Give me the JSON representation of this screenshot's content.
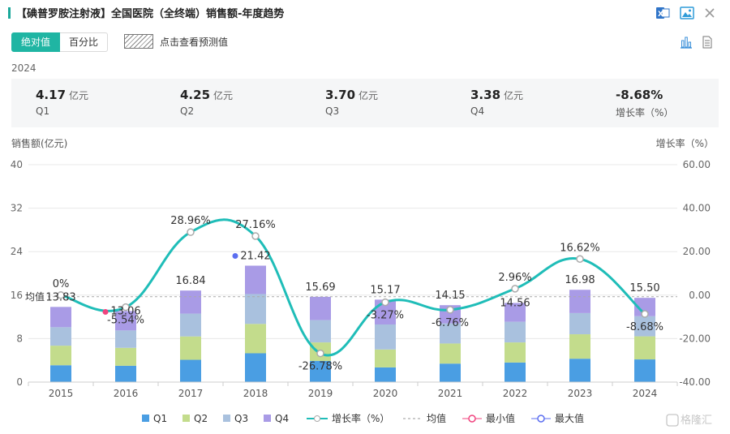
{
  "header": {
    "title": "【碘普罗胺注射液】全国医院（全终端）销售额-年度趋势",
    "icons": [
      "excel-export-icon",
      "image-export-icon",
      "close-icon"
    ]
  },
  "tabs": [
    {
      "label": "绝对值",
      "active": true
    },
    {
      "label": "百分比",
      "active": false
    }
  ],
  "forecast_label": "点击查看预测值",
  "year": "2024",
  "summary": [
    {
      "value": "4.17",
      "unit": "亿元",
      "label": "Q1"
    },
    {
      "value": "4.25",
      "unit": "亿元",
      "label": "Q2"
    },
    {
      "value": "3.70",
      "unit": "亿元",
      "label": "Q3"
    },
    {
      "value": "3.38",
      "unit": "亿元",
      "label": "Q4"
    },
    {
      "value": "-8.68%",
      "unit": "",
      "label": "增长率（%）"
    }
  ],
  "chart_data": {
    "type": "bar",
    "stacked": true,
    "categories": [
      "2015",
      "2016",
      "2017",
      "2018",
      "2019",
      "2020",
      "2021",
      "2022",
      "2023",
      "2024"
    ],
    "ylabel": "销售额(亿元)",
    "y2label": "增长率（%）",
    "ylim": [
      0,
      40
    ],
    "y_ticks": [
      0,
      8,
      16,
      24,
      32,
      40
    ],
    "y2lim": [
      -40,
      60
    ],
    "y2_ticks": [
      "-40.00",
      "-20.00",
      "0.00",
      "20.00",
      "40.00",
      "60.00"
    ],
    "series": [
      {
        "name": "Q1",
        "color": "#4a9ee3",
        "values": [
          3.1,
          3.0,
          4.1,
          5.3,
          3.9,
          2.7,
          3.4,
          3.6,
          4.3,
          4.17
        ]
      },
      {
        "name": "Q2",
        "color": "#c3dc8c",
        "values": [
          3.6,
          3.3,
          4.3,
          5.4,
          3.4,
          3.3,
          3.7,
          3.7,
          4.5,
          4.25
        ]
      },
      {
        "name": "Q3",
        "color": "#a9c1de",
        "values": [
          3.4,
          3.2,
          4.2,
          5.5,
          4.1,
          4.6,
          3.7,
          3.8,
          3.9,
          3.7
        ]
      },
      {
        "name": "Q4",
        "color": "#a99be6",
        "values": [
          3.73,
          3.56,
          4.24,
          5.22,
          4.29,
          4.57,
          3.35,
          3.46,
          4.28,
          3.38
        ]
      }
    ],
    "totals": [
      "13.83",
      "13.06",
      "16.84",
      "21.42",
      "15.69",
      "15.17",
      "14.15",
      "14.56",
      "16.98",
      "15.50"
    ],
    "growth": {
      "name": "增长率（%）",
      "color": "#1fbdb8",
      "values": [
        0,
        -5.54,
        28.96,
        27.16,
        -26.78,
        -3.27,
        -6.76,
        2.96,
        16.62,
        -8.68
      ],
      "labels": [
        "0%",
        "-5.54%",
        "28.96%",
        "27.16%",
        "-26.78%",
        "-3.27%",
        "-6.76%",
        "2.96%",
        "16.62%",
        "-8.68%"
      ]
    },
    "mean_label": "均值",
    "mean_value": 15.7,
    "min_marker": {
      "category": "2016",
      "color": "#f0437e"
    },
    "max_marker": {
      "category": "2018",
      "color": "#5b6ef0"
    },
    "legend": [
      {
        "name": "Q1",
        "kind": "square",
        "color": "#4a9ee3"
      },
      {
        "name": "Q2",
        "kind": "square",
        "color": "#c3dc8c"
      },
      {
        "name": "Q3",
        "kind": "square",
        "color": "#a9c1de"
      },
      {
        "name": "Q4",
        "kind": "square",
        "color": "#a99be6"
      },
      {
        "name": "增长率（%）",
        "kind": "line",
        "color": "#1fbdb8"
      },
      {
        "name": "均值",
        "kind": "dash",
        "color": "#999999"
      },
      {
        "name": "最小值",
        "kind": "circle",
        "color": "#f0437e"
      },
      {
        "name": "最大值",
        "kind": "circle",
        "color": "#5b6ef0"
      }
    ],
    "legend_position": "bottom"
  },
  "watermark": "格隆汇"
}
